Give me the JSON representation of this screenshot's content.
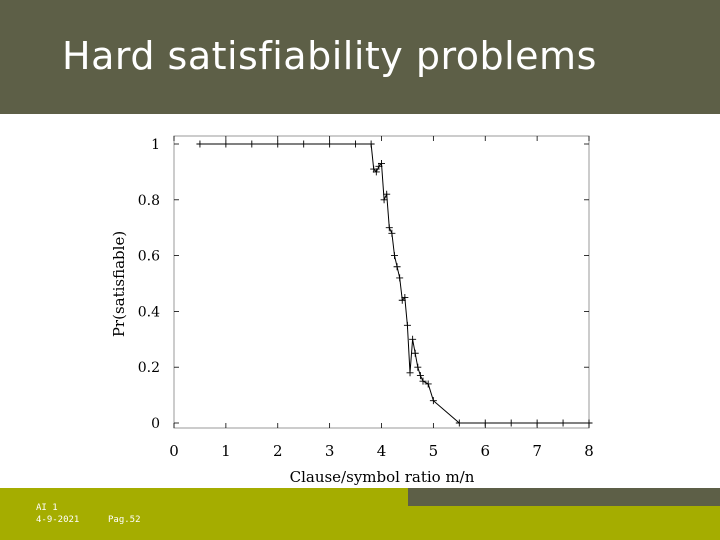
{
  "slide": {
    "title": "Hard satisfiability problems",
    "footer_course": "AI 1",
    "footer_date": "4-9-2021",
    "footer_page": "Pag.52"
  },
  "colors": {
    "title_bar": "#5d5f47",
    "footer_green": "#a5ad00",
    "line": "#000000",
    "plot_border": "#9a9a9a"
  },
  "chart_data": {
    "type": "line",
    "xlabel": "Clause/symbol ratio m/n",
    "ylabel": "Pr(satisfiable)",
    "xlim": [
      0,
      8
    ],
    "ylim": [
      0,
      1
    ],
    "xticks": [
      "0",
      "1",
      "2",
      "3",
      "4",
      "5",
      "6",
      "7",
      "8"
    ],
    "yticks": [
      "0",
      "0.2",
      "0.4",
      "0.6",
      "0.8",
      "1"
    ],
    "grid": false,
    "series": [
      {
        "marker": "plus",
        "x": [
          0.5,
          1.0,
          1.5,
          2.0,
          2.5,
          3.0,
          3.5,
          3.8,
          3.85,
          3.9,
          3.95,
          4.0,
          4.05,
          4.1,
          4.15,
          4.2,
          4.25,
          4.3,
          4.35,
          4.4,
          4.45,
          4.5,
          4.55,
          4.6,
          4.65,
          4.7,
          4.75,
          4.8,
          4.9,
          5.0,
          5.5,
          6.0,
          6.5,
          7.0,
          7.5,
          8.0
        ],
        "y": [
          1.0,
          1.0,
          1.0,
          1.0,
          1.0,
          1.0,
          1.0,
          1.0,
          0.91,
          0.9,
          0.92,
          0.93,
          0.8,
          0.82,
          0.7,
          0.68,
          0.6,
          0.56,
          0.52,
          0.44,
          0.45,
          0.35,
          0.18,
          0.3,
          0.25,
          0.2,
          0.17,
          0.15,
          0.14,
          0.08,
          0.0,
          0.0,
          0.0,
          0.0,
          0.0,
          0.0
        ]
      }
    ]
  }
}
